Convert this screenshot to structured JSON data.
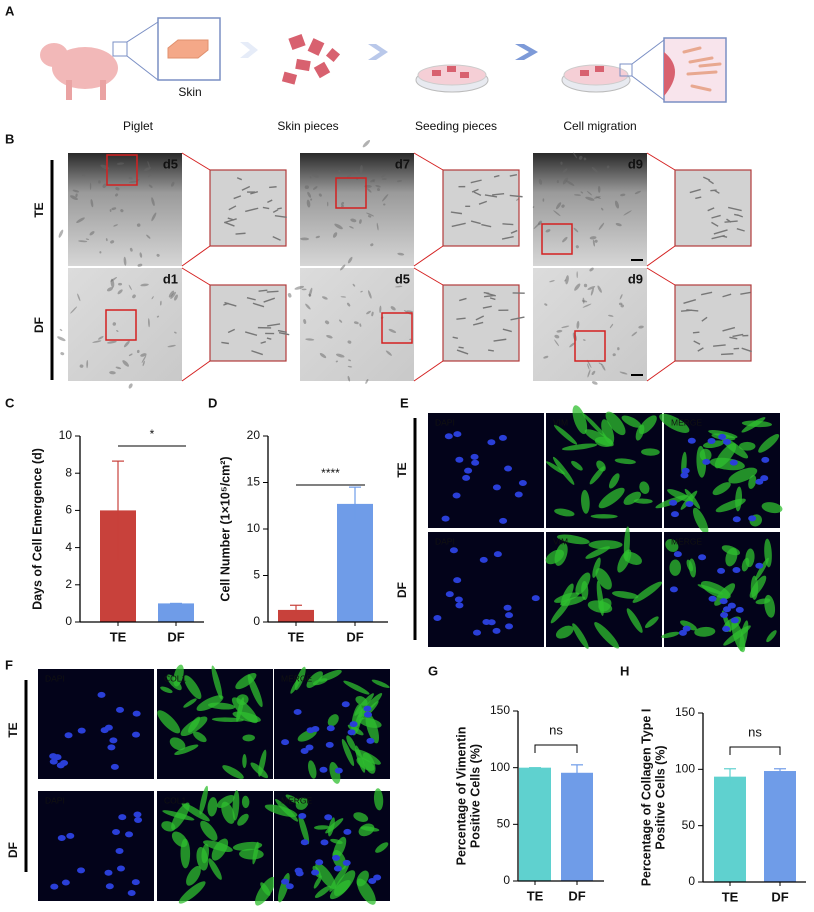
{
  "panel_labels": [
    "A",
    "B",
    "C",
    "D",
    "E",
    "F",
    "G",
    "H"
  ],
  "panel_a": {
    "skin_label": "Skin",
    "steps": [
      "Piglet",
      "Skin pieces",
      "Seeding pieces",
      "Cell migration"
    ]
  },
  "panel_b": {
    "rows": [
      "TE",
      "DF"
    ],
    "days": [
      [
        "d5",
        "d7",
        "d9"
      ],
      [
        "d1",
        "d5",
        "d9"
      ]
    ]
  },
  "panel_e": {
    "rows": [
      "TE",
      "DF"
    ],
    "channels": [
      [
        "DAPI",
        "VIM",
        "MERGE"
      ],
      [
        "DAPI",
        "VIM",
        "MERGE"
      ]
    ]
  },
  "panel_f": {
    "rows": [
      "TE",
      "DF"
    ],
    "channels": [
      [
        "DAPI",
        "COL1",
        "MERGE"
      ],
      [
        "DAPI",
        "COL1",
        "MERGE"
      ]
    ]
  },
  "chart_data": [
    {
      "type": "bar",
      "ylabel": [
        "Days of Cell Emergence (d)"
      ],
      "categories": [
        "TE",
        "DF"
      ],
      "values": [
        6,
        1
      ],
      "errors": [
        2.65,
        0
      ],
      "colors": [
        "#c8413b",
        "#6f9ce8"
      ],
      "ylim": [
        0,
        10
      ],
      "yticks": [
        0,
        2,
        4,
        6,
        8,
        10
      ],
      "annotation": "*"
    },
    {
      "type": "bar",
      "ylabel": [
        "Cell Number (1×10⁵/cm²)"
      ],
      "categories": [
        "TE",
        "DF"
      ],
      "values": [
        1.3,
        12.7
      ],
      "errors": [
        0.5,
        1.8
      ],
      "colors": [
        "#c8413b",
        "#6f9ce8"
      ],
      "ylim": [
        0,
        20
      ],
      "yticks": [
        0,
        5,
        10,
        15,
        20
      ],
      "annotation": "****"
    },
    {
      "type": "bar",
      "ylabel": [
        "Percentage of Vimentin",
        "Positive Cells (%)"
      ],
      "categories": [
        "TE",
        "DF"
      ],
      "values": [
        100,
        95.5
      ],
      "errors": [
        0,
        7
      ],
      "colors": [
        "#5fd1cf",
        "#6f9ce8"
      ],
      "ylim": [
        0,
        150
      ],
      "yticks": [
        0,
        50,
        100,
        150
      ],
      "annotation": "ns"
    },
    {
      "type": "bar",
      "ylabel": [
        "Percentage of Collagen Type I",
        "Positive Cells (%)"
      ],
      "categories": [
        "TE",
        "DF"
      ],
      "values": [
        93.5,
        98.5
      ],
      "errors": [
        7,
        2
      ],
      "colors": [
        "#5fd1cf",
        "#6f9ce8"
      ],
      "ylim": [
        0,
        150
      ],
      "yticks": [
        0,
        50,
        100,
        150
      ],
      "annotation": "ns"
    }
  ]
}
